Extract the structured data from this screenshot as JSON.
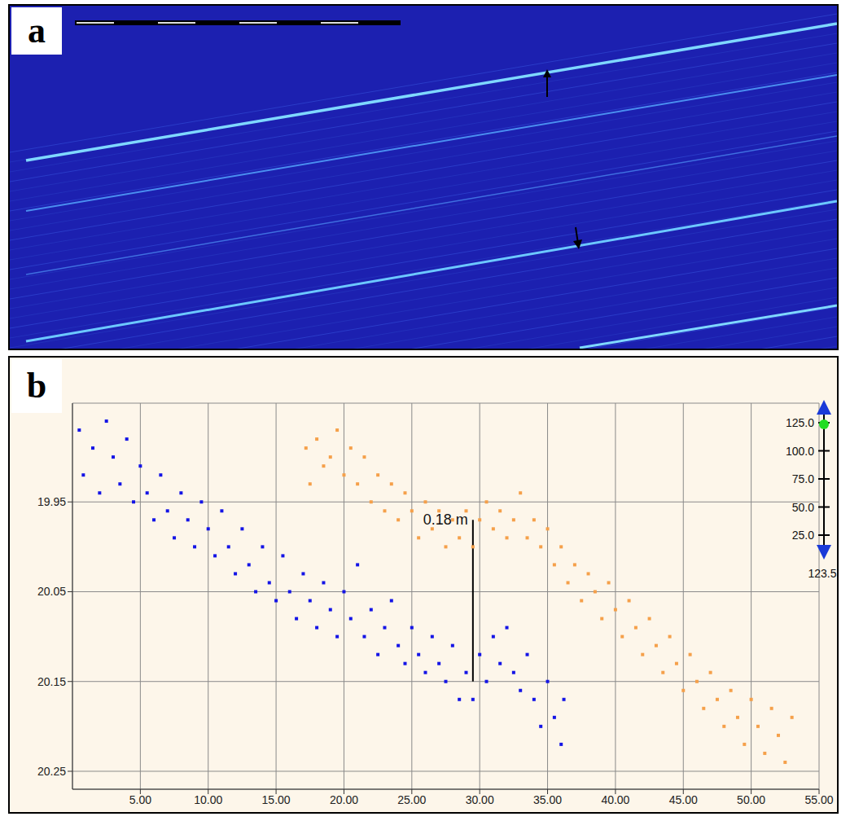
{
  "panel_a": {
    "letter": "a"
  },
  "chart_data": {
    "type": "scatter",
    "panel_letter": "b",
    "grid": true,
    "legend": null,
    "xlim": [
      0,
      55
    ],
    "xticks": [
      {
        "value": 5,
        "label": "5.00"
      },
      {
        "value": 10,
        "label": "10.00"
      },
      {
        "value": 15,
        "label": "15.00"
      },
      {
        "value": 20,
        "label": "20.00"
      },
      {
        "value": 25,
        "label": "25.00"
      },
      {
        "value": 30,
        "label": "30.00"
      },
      {
        "value": 35,
        "label": "35.00"
      },
      {
        "value": 40,
        "label": "40.00"
      },
      {
        "value": 45,
        "label": "45.00"
      },
      {
        "value": 50,
        "label": "50.00"
      },
      {
        "value": 55,
        "label": "55.00"
      }
    ],
    "ylim": [
      20.27,
      19.84
    ],
    "yticks": [
      19.95,
      20.05,
      20.15,
      20.25
    ],
    "series": [
      {
        "color": "#1414e6",
        "marker": "square",
        "x": [
          0.5,
          0.8,
          1.5,
          2,
          2.5,
          3,
          3.5,
          4,
          4.5,
          5,
          5.5,
          6,
          6.5,
          7,
          7.5,
          8,
          8.5,
          9,
          9.5,
          10,
          10.5,
          11,
          11.5,
          12,
          12.5,
          13,
          13.5,
          14,
          14.5,
          15,
          15.5,
          16,
          16.5,
          17,
          17.5,
          18,
          18.5,
          19,
          19.5,
          20,
          20.5,
          21,
          21.5,
          22,
          22.5,
          23,
          23.5,
          24,
          24.5,
          25,
          25.5,
          26,
          26.5,
          27,
          27.5,
          28,
          28.5,
          29,
          29.5,
          30,
          30.5,
          31,
          31.5,
          32,
          32.5,
          33,
          33.5,
          34,
          34.5,
          35,
          35.5,
          36,
          36.2
        ],
        "values": [
          19.87,
          19.92,
          19.89,
          19.94,
          19.86,
          19.9,
          19.93,
          19.88,
          19.95,
          19.91,
          19.94,
          19.97,
          19.92,
          19.96,
          19.99,
          19.94,
          19.97,
          20.0,
          19.95,
          19.98,
          20.01,
          19.96,
          20.0,
          20.03,
          19.98,
          20.02,
          20.05,
          20.0,
          20.04,
          20.06,
          20.01,
          20.05,
          20.08,
          20.03,
          20.06,
          20.09,
          20.04,
          20.07,
          20.1,
          20.05,
          20.08,
          20.02,
          20.1,
          20.07,
          20.12,
          20.09,
          20.06,
          20.11,
          20.13,
          20.09,
          20.12,
          20.14,
          20.1,
          20.13,
          20.15,
          20.11,
          20.17,
          20.14,
          20.17,
          20.12,
          20.15,
          20.1,
          20.13,
          20.09,
          20.14,
          20.16,
          20.12,
          20.17,
          20.2,
          20.15,
          20.19,
          20.22,
          20.17
        ]
      },
      {
        "color": "#f5a04a",
        "marker": "square",
        "x": [
          17.2,
          17.5,
          18,
          18.5,
          19,
          19.5,
          20,
          20.5,
          21,
          21.5,
          22,
          22.5,
          23,
          23.5,
          24,
          24.5,
          25,
          25.5,
          26,
          26.5,
          27,
          27.5,
          28,
          28.5,
          29,
          29.5,
          30,
          30.5,
          31,
          31.5,
          32,
          32.5,
          33,
          33.5,
          34,
          34.5,
          35,
          35.5,
          36,
          36.5,
          37,
          37.5,
          38,
          38.5,
          39,
          39.5,
          40,
          40.5,
          41,
          41.5,
          42,
          42.5,
          43,
          43.5,
          44,
          44.5,
          45,
          45.5,
          46,
          46.5,
          47,
          47.5,
          48,
          48.5,
          49,
          49.5,
          50,
          50.5,
          51,
          51.5,
          52,
          52.5,
          53
        ],
        "values": [
          19.89,
          19.93,
          19.88,
          19.91,
          19.9,
          19.87,
          19.92,
          19.89,
          19.93,
          19.9,
          19.95,
          19.92,
          19.96,
          19.93,
          19.97,
          19.94,
          19.96,
          19.99,
          19.95,
          19.98,
          19.96,
          20.0,
          19.97,
          19.99,
          19.96,
          20.0,
          19.97,
          19.95,
          19.98,
          19.96,
          19.99,
          19.97,
          19.94,
          19.99,
          19.97,
          20.0,
          19.98,
          20.02,
          20.0,
          20.04,
          20.02,
          20.06,
          20.03,
          20.05,
          20.08,
          20.04,
          20.07,
          20.1,
          20.06,
          20.09,
          20.12,
          20.08,
          20.11,
          20.14,
          20.1,
          20.13,
          20.16,
          20.12,
          20.15,
          20.18,
          20.14,
          20.17,
          20.2,
          20.16,
          20.19,
          20.22,
          20.17,
          20.2,
          20.23,
          20.18,
          20.21,
          20.24,
          20.19
        ]
      }
    ],
    "annotations": [
      {
        "text": "0.18 m",
        "x": 29.5,
        "y": [
          20.15,
          19.97
        ]
      }
    ],
    "slider": {
      "ticks": [
        {
          "value": 125,
          "label": "125.0"
        },
        {
          "value": 100,
          "label": "100.0"
        },
        {
          "value": 75,
          "label": "75.0"
        },
        {
          "value": 50,
          "label": "50.0"
        },
        {
          "value": 25,
          "label": "25.0"
        }
      ],
      "value": {
        "value": 123.5,
        "label": "123.5"
      }
    }
  }
}
